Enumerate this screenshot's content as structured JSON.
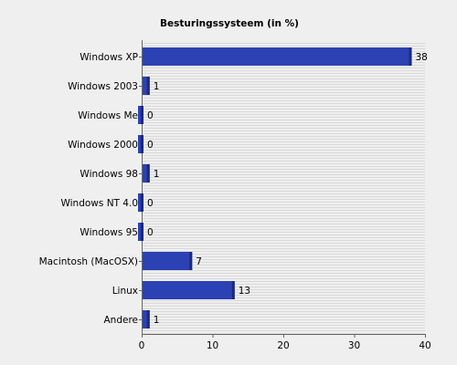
{
  "chart_data": {
    "type": "bar",
    "orientation": "horizontal",
    "title": "Besturingssysteem (in %)",
    "xlabel": "",
    "ylabel": "",
    "categories": [
      "Windows XP",
      "Windows 2003",
      "Windows Me",
      "Windows 2000",
      "Windows 98",
      "Windows NT 4.0",
      "Windows 95",
      "Macintosh (MacOSX)",
      "Linux",
      "Andere"
    ],
    "values": [
      38,
      1,
      0,
      0,
      1,
      0,
      0,
      7,
      13,
      1
    ],
    "value_labels": [
      "38",
      "1",
      "0",
      "0",
      "1",
      "0",
      "0",
      "7",
      "13",
      "1"
    ],
    "xlim": [
      0,
      40
    ],
    "xticks": [
      0,
      10,
      20,
      30,
      40
    ],
    "xtick_labels": [
      "0",
      "10",
      "20",
      "30",
      "40"
    ],
    "grid": "horizontal-stripes",
    "colors": {
      "background": "#efefef",
      "bar": "#2c41b3",
      "bar_shadow": "#1b2a7a",
      "grid": "#d9d9d9",
      "axis": "#666666"
    }
  }
}
